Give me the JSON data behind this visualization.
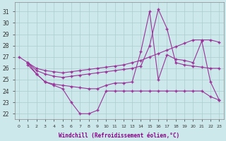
{
  "background": "#cce8ea",
  "grid_color": "#aacccc",
  "line_color": "#993399",
  "xlabel": "Windchill (Refroidissement éolien,°C)",
  "ylim": [
    21.5,
    31.8
  ],
  "xlim": [
    -0.5,
    23.5
  ],
  "yticks": [
    22,
    23,
    24,
    25,
    26,
    27,
    28,
    29,
    30,
    31
  ],
  "curves": [
    {
      "x": [
        0,
        1,
        2,
        3,
        4,
        5,
        6,
        7,
        8,
        9,
        10,
        11,
        12,
        13,
        14,
        15,
        16,
        17,
        18,
        19,
        20,
        21,
        22,
        23
      ],
      "y": [
        27.0,
        26.5,
        25.5,
        24.8,
        24.5,
        24.2,
        23.0,
        22.0,
        22.0,
        22.3,
        24.0,
        24.0,
        24.0,
        24.0,
        24.0,
        24.0,
        24.0,
        24.0,
        24.0,
        24.0,
        24.0,
        24.0,
        23.5,
        23.2
      ]
    },
    {
      "x": [
        1,
        2,
        3,
        4,
        5,
        6,
        7,
        8,
        9,
        10,
        11,
        12,
        13,
        14,
        15,
        16,
        17,
        18,
        19,
        20,
        21,
        22,
        23
      ],
      "y": [
        26.5,
        26.0,
        25.8,
        25.7,
        25.6,
        25.7,
        25.8,
        25.9,
        26.0,
        26.1,
        26.2,
        26.3,
        26.5,
        26.7,
        27.0,
        27.3,
        27.6,
        27.9,
        28.2,
        28.5,
        28.5,
        28.5,
        28.3
      ]
    },
    {
      "x": [
        1,
        2,
        3,
        4,
        5,
        6,
        7,
        8,
        9,
        10,
        11,
        12,
        13,
        14,
        15,
        16,
        17,
        18,
        19,
        20,
        21,
        22,
        23
      ],
      "y": [
        26.5,
        25.8,
        25.5,
        25.3,
        25.2,
        25.3,
        25.4,
        25.5,
        25.6,
        25.7,
        25.8,
        25.9,
        26.0,
        26.2,
        28.0,
        31.2,
        29.5,
        26.5,
        26.3,
        26.2,
        26.1,
        26.0,
        26.0
      ]
    },
    {
      "x": [
        1,
        2,
        3,
        4,
        5,
        6,
        7,
        8,
        9,
        10,
        11,
        12,
        13,
        14,
        15,
        16,
        17,
        18,
        19,
        20,
        21,
        22,
        23
      ],
      "y": [
        26.3,
        25.5,
        24.8,
        24.6,
        24.5,
        24.4,
        24.3,
        24.2,
        24.2,
        24.5,
        24.7,
        24.7,
        24.8,
        27.5,
        31.0,
        25.0,
        27.2,
        26.8,
        26.7,
        26.5,
        28.4,
        24.8,
        23.2
      ]
    }
  ]
}
